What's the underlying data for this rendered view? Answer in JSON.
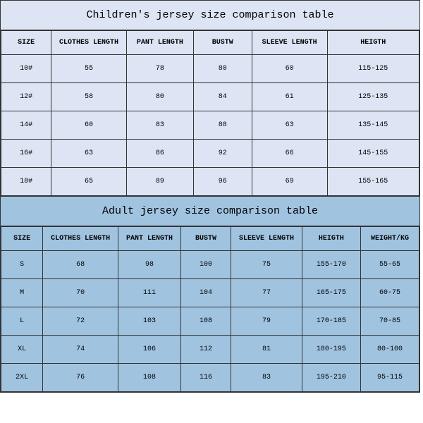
{
  "children": {
    "title": "Children's jersey size comparison table",
    "bg_color": "#dde4f3",
    "columns": [
      "SIZE",
      "CLOTHES LENGTH",
      "PANT LENGTH",
      "BUSTW",
      "SLEEVE LENGTH",
      "HEIGTH"
    ],
    "col_widths": [
      "12%",
      "18%",
      "16%",
      "14%",
      "18%",
      "22%"
    ],
    "rows": [
      [
        "10#",
        "55",
        "78",
        "80",
        "60",
        "115-125"
      ],
      [
        "12#",
        "58",
        "80",
        "84",
        "61",
        "125-135"
      ],
      [
        "14#",
        "60",
        "83",
        "88",
        "63",
        "135-145"
      ],
      [
        "16#",
        "63",
        "86",
        "92",
        "66",
        "145-155"
      ],
      [
        "18#",
        "65",
        "89",
        "96",
        "69",
        "155-165"
      ]
    ]
  },
  "adult": {
    "title": "Adult jersey size comparison table",
    "bg_color": "#a0c4df",
    "columns": [
      "SIZE",
      "CLOTHES LENGTH",
      "PANT LENGTH",
      "BUSTW",
      "SLEEVE LENGTH",
      "HEIGTH",
      "WEIGHT/KG"
    ],
    "col_widths": [
      "10%",
      "18%",
      "15%",
      "12%",
      "17%",
      "14%",
      "14%"
    ],
    "rows": [
      [
        "S",
        "68",
        "98",
        "100",
        "75",
        "155-170",
        "55-65"
      ],
      [
        "M",
        "70",
        "111",
        "104",
        "77",
        "165-175",
        "60-75"
      ],
      [
        "L",
        "72",
        "103",
        "108",
        "79",
        "170-185",
        "70-85"
      ],
      [
        "XL",
        "74",
        "106",
        "112",
        "81",
        "180-195",
        "80-100"
      ],
      [
        "2XL",
        "76",
        "108",
        "116",
        "83",
        "195-210",
        "95-115"
      ]
    ]
  },
  "title_fontsize": 15,
  "cell_fontsize": 10,
  "border_color": "#333333"
}
